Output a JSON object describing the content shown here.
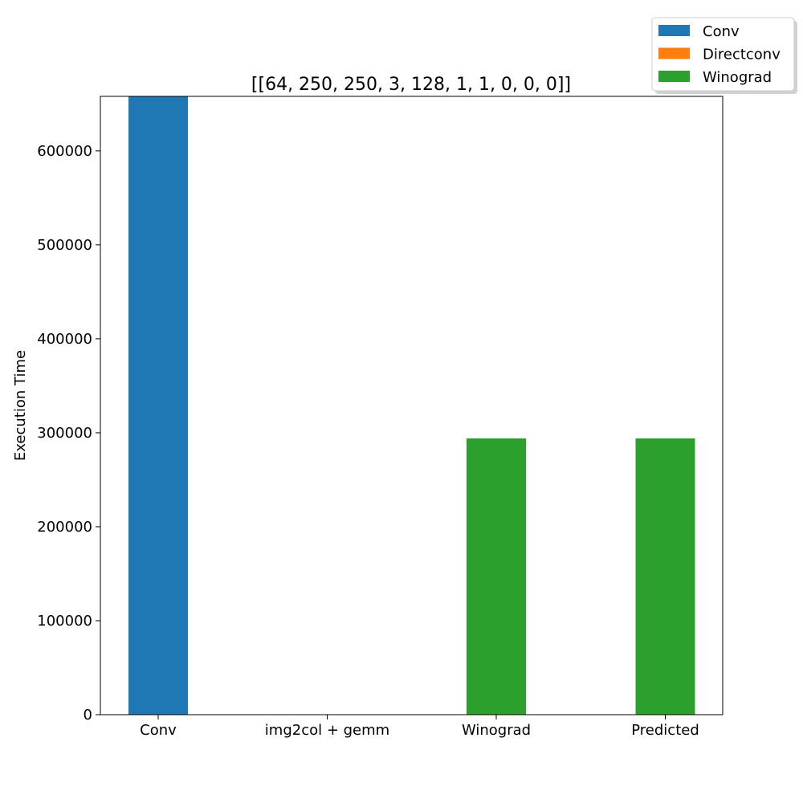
{
  "chart_data": {
    "type": "bar",
    "title": "[[64, 250, 250, 3, 128, 1, 1, 0, 0, 0]]",
    "xlabel": "",
    "ylabel": "Execution Time",
    "categories": [
      "Conv",
      "img2col + gemm",
      "Winograd",
      "Predicted"
    ],
    "ylim": [
      0,
      658000
    ],
    "yticks": [
      0,
      100000,
      200000,
      300000,
      400000,
      500000,
      600000
    ],
    "ytick_labels": [
      "0",
      "100000",
      "200000",
      "300000",
      "400000",
      "500000",
      "600000"
    ],
    "bars": [
      {
        "category": "Conv",
        "value": 658000,
        "series": "Conv"
      },
      {
        "category": "img2col + gemm",
        "value": 0,
        "series": "Directconv"
      },
      {
        "category": "Winograd",
        "value": 294000,
        "series": "Winograd"
      },
      {
        "category": "Predicted",
        "value": 294000,
        "series": "Winograd"
      }
    ],
    "legend": {
      "placement": "top-right",
      "entries": [
        {
          "name": "Conv",
          "color": "#1f77b4"
        },
        {
          "name": "Directconv",
          "color": "#ff7f0e"
        },
        {
          "name": "Winograd",
          "color": "#2ca02c"
        }
      ]
    },
    "grid": false
  }
}
